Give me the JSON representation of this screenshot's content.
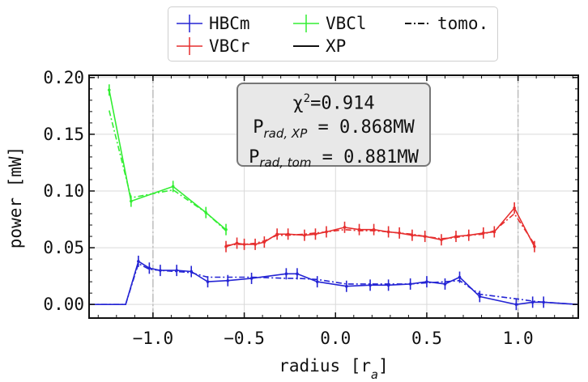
{
  "chart_data": {
    "type": "line",
    "xlabel": "radius [r",
    "xlabel_sub": "a",
    "xlabel_end": "]",
    "ylabel": "power [mW]",
    "xlim": [
      -1.35,
      1.33
    ],
    "ylim": [
      -0.012,
      0.202
    ],
    "x_ticks": [
      -1.0,
      -0.5,
      0.0,
      0.5,
      1.0
    ],
    "x_tick_labels": [
      "−1.0",
      "−0.5",
      "0.0",
      "0.5",
      "1.0"
    ],
    "y_ticks": [
      0.0,
      0.05,
      0.1,
      0.15,
      0.2
    ],
    "y_tick_labels": [
      "0.00",
      "0.05",
      "0.10",
      "0.15",
      "0.20"
    ],
    "vlines": [
      -1.0,
      1.0
    ],
    "grid": true,
    "legend_position": "top-outside",
    "stats": {
      "chi_symbol": "χ",
      "chi_sup": "2",
      "chi_value": "=0.914",
      "xp_label": "P",
      "xp_sub": "rad, XP",
      "xp_value": " = 0.868MW",
      "tom_label": "P",
      "tom_sub": "rad, tom",
      "tom_value": " = 0.881MW"
    },
    "legend": [
      {
        "name": "HBCm",
        "kind": "errorbar",
        "color": "#2424d4"
      },
      {
        "name": "VBCl",
        "kind": "errorbar",
        "color": "#33ee33"
      },
      {
        "name": "tomo.",
        "kind": "dashdot",
        "color": "#111111"
      },
      {
        "name": "VBCr",
        "kind": "errorbar",
        "color": "#e62e2e"
      },
      {
        "name": "XP",
        "kind": "solid",
        "color": "#111111"
      }
    ],
    "series": [
      {
        "name": "HBCm",
        "color": "#2424d4",
        "x": [
          -1.35,
          -1.25,
          -1.15,
          -1.08,
          -1.02,
          -0.96,
          -0.87,
          -0.79,
          -0.7,
          -0.59,
          -0.46,
          -0.27,
          -0.21,
          -0.1,
          0.06,
          0.19,
          0.29,
          0.41,
          0.5,
          0.6,
          0.68,
          0.79,
          0.99,
          1.08,
          1.14,
          1.33
        ],
        "xp": [
          0.0,
          0.0,
          0.0,
          0.038,
          0.032,
          0.03,
          0.03,
          0.029,
          0.02,
          0.021,
          0.023,
          0.027,
          0.027,
          0.02,
          0.016,
          0.017,
          0.017,
          0.018,
          0.02,
          0.018,
          0.024,
          0.007,
          0.0,
          0.002,
          0.002,
          0.0
        ],
        "tomo": [
          0.0,
          0.0,
          0.0,
          0.036,
          0.031,
          0.03,
          0.029,
          0.028,
          0.024,
          0.024,
          0.024,
          0.023,
          0.023,
          0.022,
          0.018,
          0.018,
          0.018,
          0.018,
          0.019,
          0.02,
          0.021,
          0.009,
          0.005,
          0.003,
          0.002,
          0.0
        ],
        "error_x": [
          -1.08,
          -1.02,
          -0.96,
          -0.87,
          -0.79,
          -0.7,
          -0.59,
          -0.46,
          -0.27,
          -0.21,
          -0.1,
          0.06,
          0.19,
          0.29,
          0.41,
          0.5,
          0.6,
          0.68,
          0.79,
          0.99,
          1.08,
          1.14
        ]
      },
      {
        "name": "VBCr",
        "color": "#e62e2e",
        "x": [
          -0.6,
          -0.54,
          -0.5,
          -0.44,
          -0.39,
          -0.32,
          -0.26,
          -0.17,
          -0.11,
          -0.05,
          0.05,
          0.13,
          0.21,
          0.29,
          0.35,
          0.42,
          0.49,
          0.58,
          0.66,
          0.73,
          0.81,
          0.87,
          0.98,
          1.09
        ],
        "xp": [
          0.051,
          0.054,
          0.053,
          0.053,
          0.055,
          0.062,
          0.062,
          0.061,
          0.062,
          0.064,
          0.068,
          0.066,
          0.066,
          0.064,
          0.063,
          0.061,
          0.06,
          0.057,
          0.06,
          0.061,
          0.063,
          0.064,
          0.085,
          0.051
        ],
        "tomo": [
          0.052,
          0.053,
          0.053,
          0.054,
          0.056,
          0.061,
          0.061,
          0.062,
          0.063,
          0.064,
          0.066,
          0.065,
          0.065,
          0.064,
          0.063,
          0.062,
          0.06,
          0.058,
          0.059,
          0.061,
          0.062,
          0.065,
          0.08,
          0.053
        ],
        "error_x": [
          -0.6,
          -0.54,
          -0.5,
          -0.44,
          -0.39,
          -0.32,
          -0.26,
          -0.17,
          -0.11,
          -0.05,
          0.05,
          0.13,
          0.21,
          0.29,
          0.35,
          0.42,
          0.49,
          0.58,
          0.66,
          0.73,
          0.81,
          0.87,
          0.98,
          1.09
        ]
      },
      {
        "name": "VBCl",
        "color": "#33ee33",
        "x": [
          -1.24,
          -1.12,
          -0.89,
          -0.71,
          -0.6
        ],
        "xp": [
          0.189,
          0.091,
          0.104,
          0.081,
          0.066
        ],
        "tomo": [
          0.171,
          0.094,
          0.101,
          0.081,
          0.065
        ],
        "error_x": [
          -1.24,
          -1.12,
          -0.89,
          -0.71,
          -0.6
        ]
      }
    ]
  }
}
